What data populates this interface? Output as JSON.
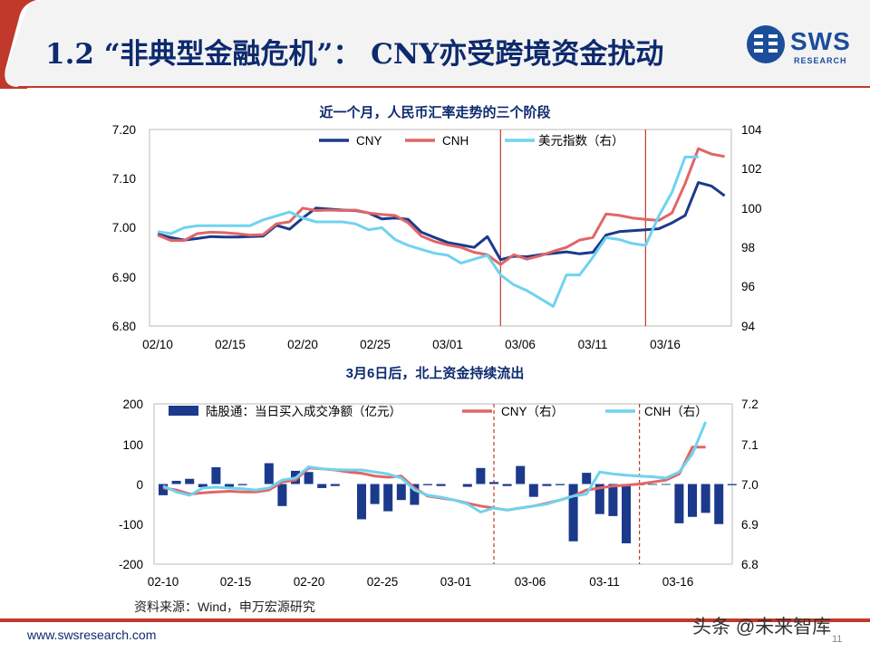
{
  "header": {
    "title": "1.2 “非典型金融危机”： CNY亦受跨境资金扰动"
  },
  "logo": {
    "main": "SWS",
    "sub": "RESEARCH"
  },
  "colors": {
    "navy": "#1b3a8c",
    "red": "#e06666",
    "cyan": "#6fd3ef",
    "title_blue": "#0d2a6e",
    "vline_red": "#c0392b"
  },
  "chart_data": [
    {
      "type": "line",
      "title": "近一个月，人民币汇率走势的三个阶段",
      "x_ticks": [
        "02/10",
        "02/15",
        "02/20",
        "02/25",
        "03/01",
        "03/06",
        "03/11",
        "03/16"
      ],
      "y_left": {
        "ticks": [
          "7.20",
          "7.10",
          "7.00",
          "6.90",
          "6.80"
        ],
        "ylim": [
          6.8,
          7.2
        ]
      },
      "y_right": {
        "ticks": [
          "104",
          "102",
          "100",
          "98",
          "96",
          "94"
        ],
        "ylim": [
          94,
          104
        ]
      },
      "legend": [
        "CNY",
        "CNH",
        "美元指数（右）"
      ],
      "vlines_day": [
        26,
        37
      ],
      "series": [
        {
          "name": "CNY",
          "axis": "left",
          "color": "#1b3a8c",
          "x": [
            0,
            1,
            2,
            3,
            4,
            5,
            6,
            7,
            8,
            9,
            10,
            11,
            12,
            13,
            14,
            15,
            16,
            17,
            18,
            19,
            20,
            21,
            22,
            23,
            24,
            25,
            26,
            27,
            28,
            29,
            30,
            31,
            32,
            33,
            34,
            35,
            36,
            37,
            38,
            39,
            40,
            41,
            42,
            43
          ],
          "y": [
            6.987,
            6.98,
            6.975,
            6.978,
            6.982,
            6.981,
            6.981,
            6.982,
            6.983,
            7.005,
            6.997,
            7.02,
            7.04,
            7.038,
            7.036,
            7.035,
            7.03,
            7.018,
            7.02,
            7.017,
            6.991,
            6.98,
            6.97,
            6.965,
            6.96,
            6.982,
            6.935,
            6.942,
            6.941,
            6.945,
            6.948,
            6.951,
            6.947,
            6.95,
            6.985,
            6.992,
            6.994,
            6.996,
            6.998,
            7.01,
            7.025,
            7.092,
            7.085,
            7.065
          ]
        },
        {
          "name": "CNH",
          "axis": "left",
          "color": "#e06666",
          "x": [
            0,
            1,
            2,
            3,
            4,
            5,
            6,
            7,
            8,
            9,
            10,
            11,
            12,
            13,
            14,
            15,
            16,
            17,
            18,
            19,
            20,
            21,
            22,
            23,
            24,
            25,
            26,
            27,
            28,
            29,
            30,
            31,
            32,
            33,
            34,
            35,
            36,
            37,
            38,
            39,
            40,
            41,
            42,
            43
          ],
          "y": [
            6.985,
            6.974,
            6.974,
            6.988,
            6.991,
            6.99,
            6.988,
            6.985,
            6.986,
            7.008,
            7.012,
            7.04,
            7.035,
            7.036,
            7.035,
            7.036,
            7.03,
            7.027,
            7.025,
            7.01,
            6.983,
            6.972,
            6.965,
            6.96,
            6.95,
            6.945,
            6.925,
            6.945,
            6.936,
            6.943,
            6.952,
            6.96,
            6.975,
            6.98,
            7.028,
            7.025,
            7.02,
            7.017,
            7.015,
            7.03,
            7.09,
            7.161,
            7.15,
            7.145
          ]
        },
        {
          "name": "美元指数（右）",
          "axis": "right",
          "color": "#6fd3ef",
          "x": [
            0,
            1,
            2,
            3,
            4,
            5,
            6,
            7,
            8,
            9,
            10,
            11,
            12,
            13,
            14,
            15,
            16,
            17,
            18,
            19,
            20,
            21,
            22,
            23,
            24,
            25,
            26,
            27,
            28,
            29,
            30,
            31,
            32,
            33,
            34,
            35,
            36,
            37,
            38,
            39,
            40,
            41
          ],
          "y": [
            98.8,
            98.7,
            99.0,
            99.1,
            99.1,
            99.1,
            99.1,
            99.1,
            99.4,
            99.6,
            99.8,
            99.5,
            99.3,
            99.3,
            99.3,
            99.2,
            98.9,
            99.0,
            98.4,
            98.1,
            97.9,
            97.7,
            97.6,
            97.2,
            97.4,
            97.6,
            96.6,
            96.1,
            95.8,
            95.4,
            95.0,
            96.6,
            96.6,
            97.5,
            98.5,
            98.4,
            98.2,
            98.1,
            99.6,
            100.8,
            102.6,
            102.6
          ]
        }
      ]
    },
    {
      "type": "bar",
      "title": "3月6日后，北上资金持续流出",
      "x_ticks": [
        "02-10",
        "02-15",
        "02-20",
        "02-25",
        "03-01",
        "03-06",
        "03-11",
        "03-16"
      ],
      "y_left": {
        "ticks": [
          "200",
          "100",
          "0",
          "-100",
          "-200"
        ],
        "ylim": [
          -200,
          200
        ]
      },
      "y_right": {
        "ticks": [
          "7.2",
          "7.1",
          "7.0",
          "6.9",
          "6.8"
        ],
        "ylim": [
          6.8,
          7.2
        ]
      },
      "legend": [
        "陆股通：当日买入成交净额（亿元）",
        "CNY（右）",
        "CNH（右）"
      ],
      "vlines_day": [
        25,
        36
      ],
      "bars": {
        "name": "陆股通：当日买入成交净额（亿元）",
        "color": "#1b3a8c",
        "x": [
          0,
          1,
          2,
          3,
          4,
          5,
          6,
          8,
          9,
          10,
          11,
          12,
          13,
          15,
          16,
          17,
          18,
          19,
          20,
          21,
          23,
          24,
          25,
          26,
          27,
          28,
          29,
          30,
          31,
          32,
          33,
          34,
          35,
          36,
          37,
          38,
          39,
          40,
          41,
          42,
          43
        ],
        "values": [
          -28,
          8,
          13,
          -8,
          42,
          -7,
          -3,
          52,
          -55,
          33,
          30,
          -10,
          -5,
          -88,
          -50,
          -68,
          -40,
          -52,
          -3,
          -5,
          -7,
          40,
          5,
          -5,
          45,
          -32,
          -5,
          -3,
          -143,
          28,
          -75,
          -80,
          -148,
          -3,
          -2,
          -2,
          -98,
          -82,
          -72,
          -100,
          -3
        ]
      },
      "series": [
        {
          "name": "CNY（右）",
          "axis": "right",
          "color": "#e06666",
          "x": [
            0,
            1,
            2,
            3,
            4,
            5,
            6,
            7,
            8,
            9,
            10,
            11,
            12,
            13,
            14,
            15,
            16,
            17,
            18,
            19,
            20,
            21,
            22,
            23,
            24,
            25,
            26,
            27,
            28,
            29,
            30,
            31,
            32,
            33,
            34,
            35,
            36,
            37,
            38,
            39,
            40,
            41
          ],
          "y": [
            6.99,
            6.985,
            6.975,
            6.978,
            6.98,
            6.982,
            6.98,
            6.98,
            6.985,
            7.005,
            7.01,
            7.04,
            7.038,
            7.035,
            7.03,
            7.027,
            7.02,
            7.017,
            7.02,
            6.99,
            6.97,
            6.965,
            6.96,
            6.952,
            6.945,
            6.94,
            6.935,
            6.94,
            6.945,
            6.952,
            6.96,
            6.97,
            6.985,
            6.99,
            6.995,
            6.997,
            7.0,
            7.005,
            7.01,
            7.025,
            7.092,
            7.092
          ]
        },
        {
          "name": "CNH（右）",
          "axis": "right",
          "color": "#6fd3ef",
          "x": [
            0,
            1,
            2,
            3,
            4,
            5,
            6,
            7,
            8,
            9,
            10,
            11,
            12,
            13,
            14,
            15,
            16,
            17,
            18,
            19,
            20,
            21,
            22,
            23,
            24,
            25,
            26,
            27,
            28,
            29,
            30,
            31,
            32,
            33,
            34,
            35,
            36,
            37,
            38,
            39,
            40,
            41
          ],
          "y": [
            6.995,
            6.98,
            6.972,
            6.99,
            6.992,
            6.99,
            6.988,
            6.985,
            6.99,
            7.01,
            7.015,
            7.043,
            7.038,
            7.036,
            7.035,
            7.035,
            7.03,
            7.025,
            7.015,
            6.985,
            6.972,
            6.967,
            6.96,
            6.95,
            6.93,
            6.94,
            6.935,
            6.94,
            6.945,
            6.95,
            6.96,
            6.97,
            6.975,
            7.03,
            7.025,
            7.022,
            7.02,
            7.018,
            7.015,
            7.03,
            7.075,
            7.155
          ]
        }
      ]
    }
  ],
  "source_note": "资料来源：Wind，申万宏源研究",
  "footer": {
    "url": "www.swsresearch.com",
    "watermark": "头条 @未来智库",
    "page": "11"
  }
}
